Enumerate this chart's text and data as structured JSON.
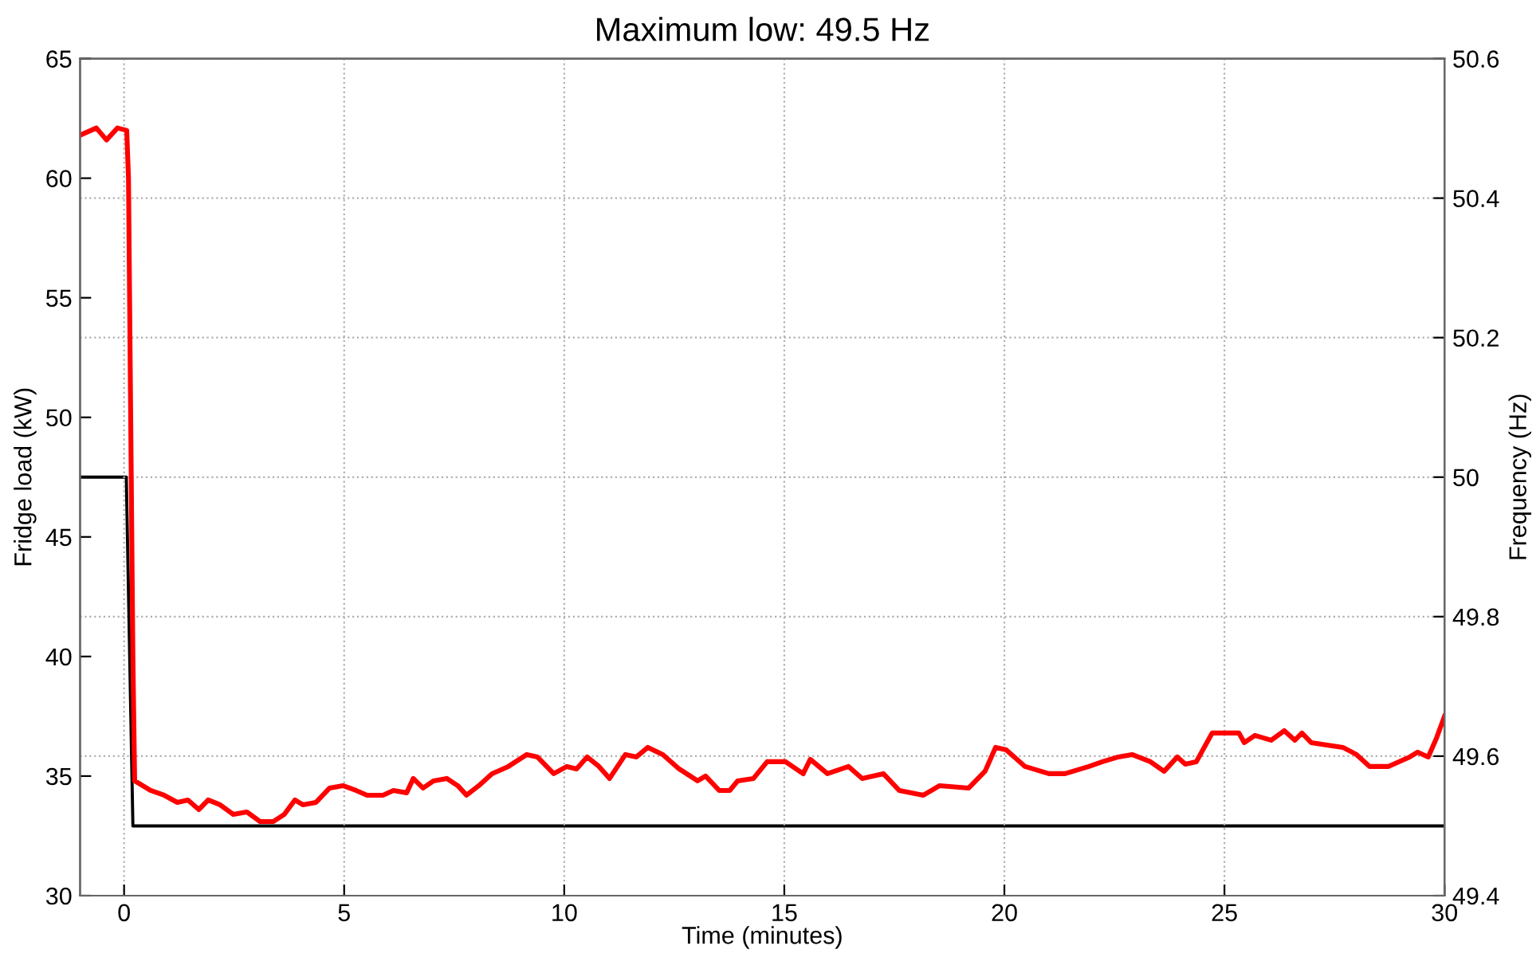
{
  "chart_data": {
    "type": "line",
    "title": "Maximum low: 49.5 Hz",
    "xlabel": "Time (minutes)",
    "ylabel": "Fridge load (kW)",
    "y2label": "Frequency (Hz)",
    "xlim": [
      -1,
      30
    ],
    "xticks": [
      0,
      5,
      10,
      15,
      20,
      25,
      30
    ],
    "ylim": [
      30,
      65
    ],
    "yticks": [
      30,
      35,
      40,
      45,
      50,
      55,
      60,
      65
    ],
    "y2lim": [
      49.4,
      50.6
    ],
    "y2ticks": [
      49.4,
      49.6,
      49.8,
      50,
      50.2,
      50.4,
      50.6
    ],
    "grid": true,
    "legend": false,
    "marker": "none",
    "line_style": "solid",
    "series": [
      {
        "color": "#ff0000",
        "x": [
          -1.0,
          -0.63,
          -0.4,
          -0.15,
          0.06,
          0.1,
          0.15,
          0.2,
          0.24,
          0.6,
          0.91,
          1.21,
          1.45,
          1.7,
          1.91,
          2.18,
          2.48,
          2.79,
          3.09,
          3.39,
          3.64,
          3.88,
          4.06,
          4.36,
          4.67,
          4.97,
          5.27,
          5.52,
          5.88,
          6.12,
          6.42,
          6.57,
          6.79,
          7.03,
          7.33,
          7.58,
          7.78,
          8.06,
          8.36,
          8.73,
          9.15,
          9.39,
          9.76,
          10.06,
          10.28,
          10.52,
          10.79,
          11.03,
          11.39,
          11.64,
          11.9,
          12.24,
          12.61,
          13.03,
          13.21,
          13.52,
          13.76,
          13.94,
          14.3,
          14.61,
          15.03,
          15.43,
          15.59,
          15.98,
          16.46,
          16.77,
          17.25,
          17.61,
          18.16,
          18.53,
          19.19,
          19.56,
          19.8,
          20.04,
          20.47,
          21.01,
          21.38,
          21.92,
          22.23,
          22.59,
          22.9,
          23.32,
          23.63,
          23.93,
          24.11,
          24.36,
          24.72,
          25.33,
          25.45,
          25.69,
          26.06,
          26.36,
          26.6,
          26.76,
          26.97,
          27.69,
          28.0,
          28.3,
          28.72,
          29.21,
          29.39,
          29.63,
          29.82,
          30.0
        ],
        "values": [
          61.8,
          62.1,
          61.6,
          62.1,
          62.0,
          60.0,
          50.0,
          40.0,
          34.8,
          34.4,
          34.2,
          33.9,
          34.0,
          33.6,
          34.0,
          33.8,
          33.4,
          33.5,
          33.1,
          33.1,
          33.4,
          34.0,
          33.8,
          33.9,
          34.5,
          34.6,
          34.4,
          34.2,
          34.2,
          34.4,
          34.3,
          34.9,
          34.5,
          34.8,
          34.9,
          34.6,
          34.2,
          34.6,
          35.1,
          35.4,
          35.9,
          35.8,
          35.1,
          35.4,
          35.3,
          35.8,
          35.4,
          34.9,
          35.9,
          35.8,
          36.2,
          35.9,
          35.3,
          34.8,
          35.0,
          34.4,
          34.4,
          34.8,
          34.9,
          35.6,
          35.6,
          35.1,
          35.7,
          35.1,
          35.4,
          34.9,
          35.1,
          34.4,
          34.2,
          34.6,
          34.5,
          35.2,
          36.2,
          36.1,
          35.4,
          35.1,
          35.1,
          35.4,
          35.6,
          35.8,
          35.9,
          35.6,
          35.2,
          35.8,
          35.5,
          35.6,
          36.8,
          36.8,
          36.4,
          36.7,
          36.5,
          36.9,
          36.5,
          36.8,
          36.4,
          36.2,
          35.9,
          35.4,
          35.4,
          35.8,
          36.0,
          35.8,
          36.6,
          37.5
        ]
      },
      {
        "color": "#000000",
        "axis": "y2",
        "x": [
          -1.0,
          0.05,
          0.2,
          30.0
        ],
        "values": [
          50,
          50,
          49.5,
          49.5
        ]
      }
    ]
  }
}
